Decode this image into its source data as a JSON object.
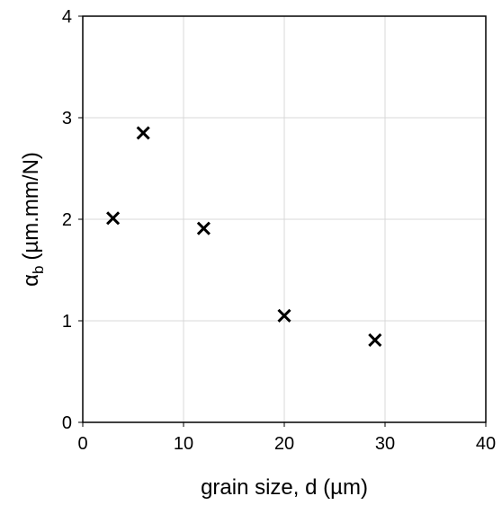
{
  "chart_data": {
    "type": "scatter",
    "xlabel": "grain size, d (µm)",
    "ylabel": {
      "text": "α",
      "subscript": "b",
      "suffix": "(µm.mm/N)"
    },
    "x": [
      3,
      6,
      12,
      20,
      29
    ],
    "values": [
      2.01,
      2.85,
      1.91,
      1.05,
      0.81
    ],
    "color": "#000000",
    "xlim": [
      0,
      40
    ],
    "xticks": [
      0,
      10,
      20,
      30,
      40
    ],
    "ylim": [
      0,
      4
    ],
    "yticks": [
      0,
      1,
      2,
      3,
      4
    ],
    "grid": true
  }
}
